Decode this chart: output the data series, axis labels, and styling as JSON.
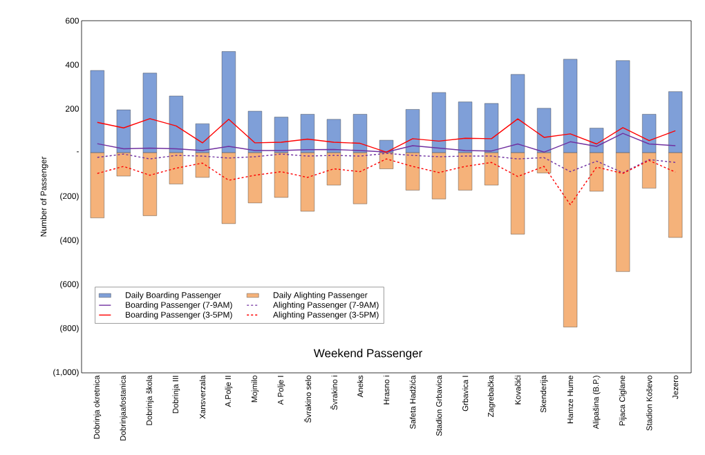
{
  "chart_data": {
    "type": "bar",
    "title": "Weekend Passenger",
    "ylabel": "Number of Passenger",
    "categories": [
      "Dobrinja okretnica",
      "Dobrinjaafostanica",
      "Dobrinja škola",
      "Dobrinja III",
      "Xansverzala",
      "A.Polje II",
      "Mojmilo",
      "A Polje I",
      "Švrakino selo",
      "Švrakino i",
      "Aneks",
      "Hrasno i",
      "Safeta Hadžića",
      "Stadion Grbavica",
      "Grbavica I",
      "Zagrebačka",
      "Kovačići",
      "Skenderija",
      "Hamze Hume",
      "Alipašina (B.P.)",
      "Pijaca Ciglane",
      "Stadion Koševo",
      "Jezero"
    ],
    "series": [
      {
        "name": "Daily Boarding Passenger",
        "color": "#7f9fd8",
        "values": [
          374,
          195,
          362,
          258,
          132,
          460,
          189,
          162,
          175,
          152,
          175,
          57,
          197,
          274,
          231,
          224,
          356,
          202,
          425,
          112,
          419,
          175,
          278
        ]
      },
      {
        "name": "Daily Alighting Passenger",
        "color": "#f5b27a",
        "values": [
          -296,
          -106,
          -286,
          -142,
          -112,
          -322,
          -228,
          -203,
          -266,
          -147,
          -232,
          -73,
          -170,
          -210,
          -170,
          -147,
          -370,
          -92,
          -792,
          -175,
          -540,
          -161,
          -385
        ]
      },
      {
        "name": "Boarding Passenger (7-9AM)",
        "type": "line",
        "line_style": "solid",
        "color": "#7030a0",
        "values": [
          41,
          18,
          21,
          18,
          10,
          29,
          10,
          10,
          14,
          15,
          10,
          3,
          32,
          21,
          10,
          8,
          40,
          3,
          50,
          29,
          88,
          40,
          32
        ]
      },
      {
        "name": "Alighting Passenger (7-9AM)",
        "type": "line",
        "line_style": "dashed",
        "color": "#7030a0",
        "values": [
          -21,
          -6,
          -28,
          -12,
          -15,
          -24,
          -18,
          -6,
          -15,
          -12,
          -15,
          -3,
          -12,
          -18,
          -15,
          -15,
          -28,
          -22,
          -86,
          -38,
          -91,
          -31,
          -44
        ]
      },
      {
        "name": "Boarding Passenger (3-5PM)",
        "type": "line",
        "line_style": "solid",
        "color": "#ff0000",
        "values": [
          138,
          113,
          155,
          122,
          45,
          152,
          45,
          48,
          62,
          48,
          43,
          3,
          64,
          53,
          66,
          64,
          154,
          70,
          86,
          40,
          114,
          55,
          100
        ]
      },
      {
        "name": "Alighting Passenger (3-5PM)",
        "type": "line",
        "line_style": "dashed",
        "color": "#ff0000",
        "values": [
          -94,
          -62,
          -102,
          -70,
          -47,
          -125,
          -102,
          -86,
          -112,
          -73,
          -86,
          -28,
          -62,
          -90,
          -62,
          -44,
          -108,
          -62,
          -236,
          -65,
          -94,
          -35,
          -88
        ]
      }
    ],
    "ylim": [
      -1000,
      600
    ],
    "yticks": [
      {
        "value": -1000,
        "label": "(1,000)"
      },
      {
        "value": -800,
        "label": "(800)"
      },
      {
        "value": -600,
        "label": "(600)"
      },
      {
        "value": -400,
        "label": "(400)"
      },
      {
        "value": -200,
        "label": "(200)"
      },
      {
        "value": 0,
        "label": "-"
      },
      200,
      400,
      600
    ],
    "legend": "bottom left",
    "marker": "none",
    "stacked": true
  }
}
